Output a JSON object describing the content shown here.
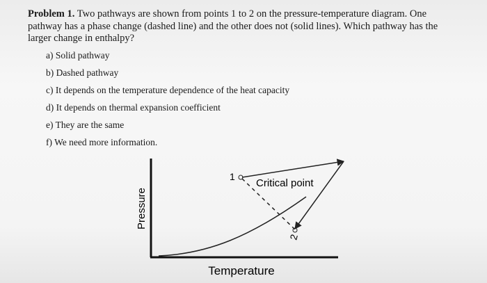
{
  "problem": {
    "label": "Problem 1.",
    "text": "Two pathways are shown from points 1 to 2 on the pressure-temperature diagram. One pathway has a phase change (dashed line) and the other does not (solid lines). Which pathway has the larger change in enthalpy?"
  },
  "options": [
    "a) Solid pathway",
    "b) Dashed pathway",
    "c) It depends on the temperature dependence of the heat capacity",
    "d) It depends on thermal expansion coefficient",
    "e) They are the same",
    "f) We need more information."
  ],
  "diagram": {
    "y_axis_label": "Pressure",
    "x_axis_label": "Temperature",
    "critical_point_label": "Critical point",
    "point_1": "1",
    "point_2": "2"
  }
}
